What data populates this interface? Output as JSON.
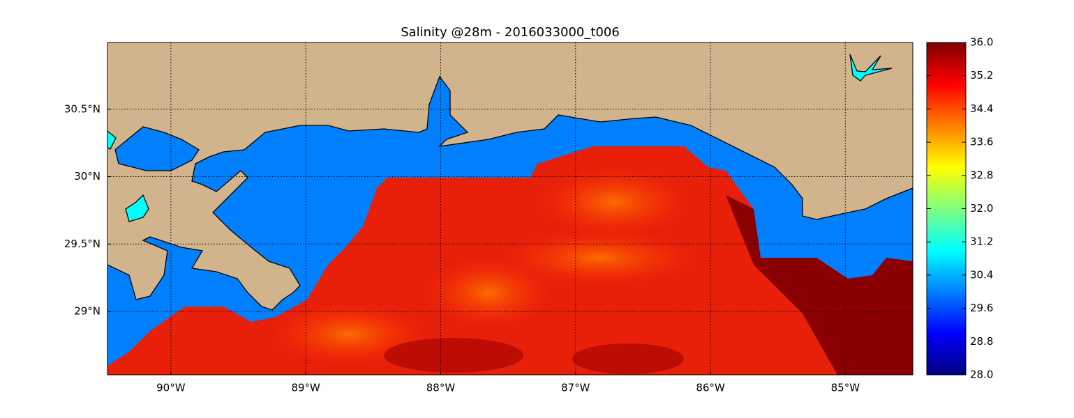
{
  "chart_data": {
    "type": "map",
    "title": "Salinity @28m - 2016033000_t006",
    "xlim": [
      -90.47,
      -84.5
    ],
    "ylim": [
      28.53,
      30.995
    ],
    "xticks": [
      {
        "value": -90,
        "label": "90°W"
      },
      {
        "value": -89,
        "label": "89°W"
      },
      {
        "value": -88,
        "label": "88°W"
      },
      {
        "value": -87,
        "label": "87°W"
      },
      {
        "value": -86,
        "label": "86°W"
      },
      {
        "value": -85,
        "label": "85°W"
      }
    ],
    "yticks": [
      {
        "value": 29,
        "label": "29°N"
      },
      {
        "value": 29.5,
        "label": "29.5°N"
      },
      {
        "value": 30,
        "label": "30°N"
      },
      {
        "value": 30.5,
        "label": "30.5°N"
      }
    ],
    "grid": true,
    "colorbar": {
      "lim": [
        28,
        36
      ],
      "ticks": [
        {
          "value": 28,
          "label": "28.0"
        },
        28.8,
        29.6,
        30.4,
        31.2,
        {
          "value": 32,
          "label": "32.0"
        },
        32.8,
        33.6,
        34.4,
        35.2,
        {
          "value": 36,
          "label": "36.0"
        }
      ]
    }
  }
}
